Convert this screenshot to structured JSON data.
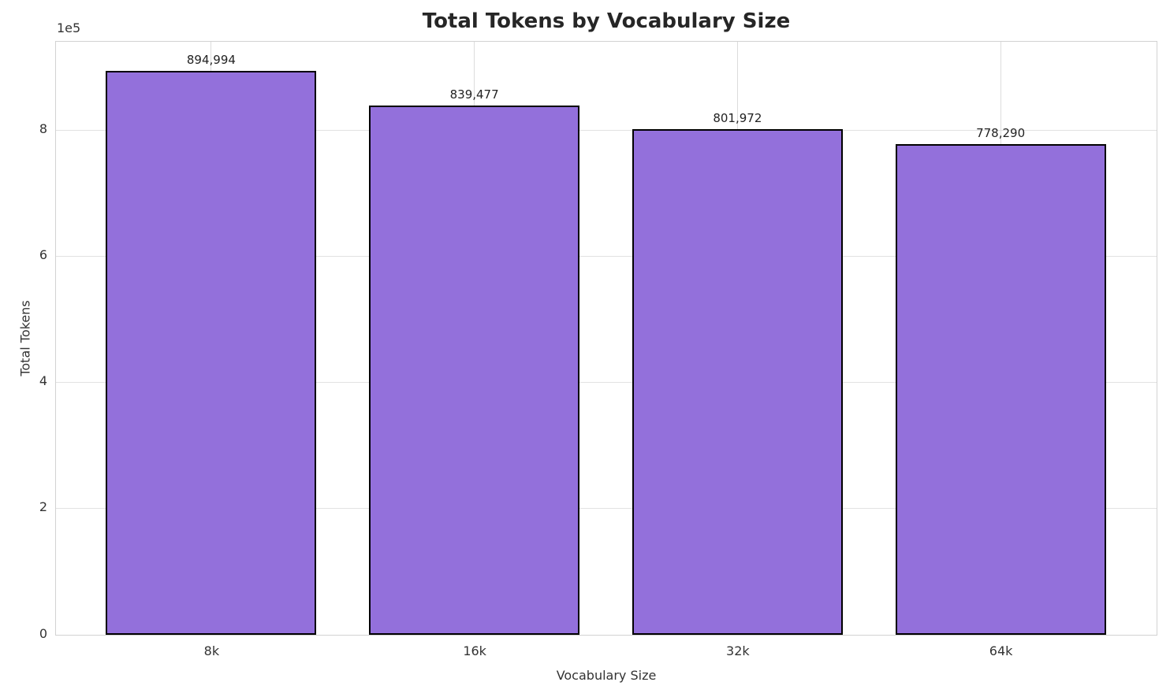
{
  "chart_data": {
    "type": "bar",
    "title": "Total Tokens by Vocabulary Size",
    "xlabel": "Vocabulary Size",
    "ylabel": "Total Tokens",
    "categories": [
      "8k",
      "16k",
      "32k",
      "64k"
    ],
    "values": [
      894994,
      839477,
      801972,
      778290
    ],
    "value_labels": [
      "894,994",
      "839,477",
      "801,972",
      "778,290"
    ],
    "ylim": [
      0,
      939744
    ],
    "yticks": [
      0,
      200000,
      400000,
      600000,
      800000
    ],
    "ytick_labels": [
      "0",
      "2",
      "4",
      "6",
      "8"
    ],
    "y_offset_text": "1e5",
    "grid": true,
    "legend": "none",
    "bar_color": "#9370DB",
    "bar_edge_color": "#000000",
    "grid_color": "#dcdcdc",
    "spine_color": "#d2d2d2",
    "text_color": "#333333",
    "title_color": "#262626"
  }
}
